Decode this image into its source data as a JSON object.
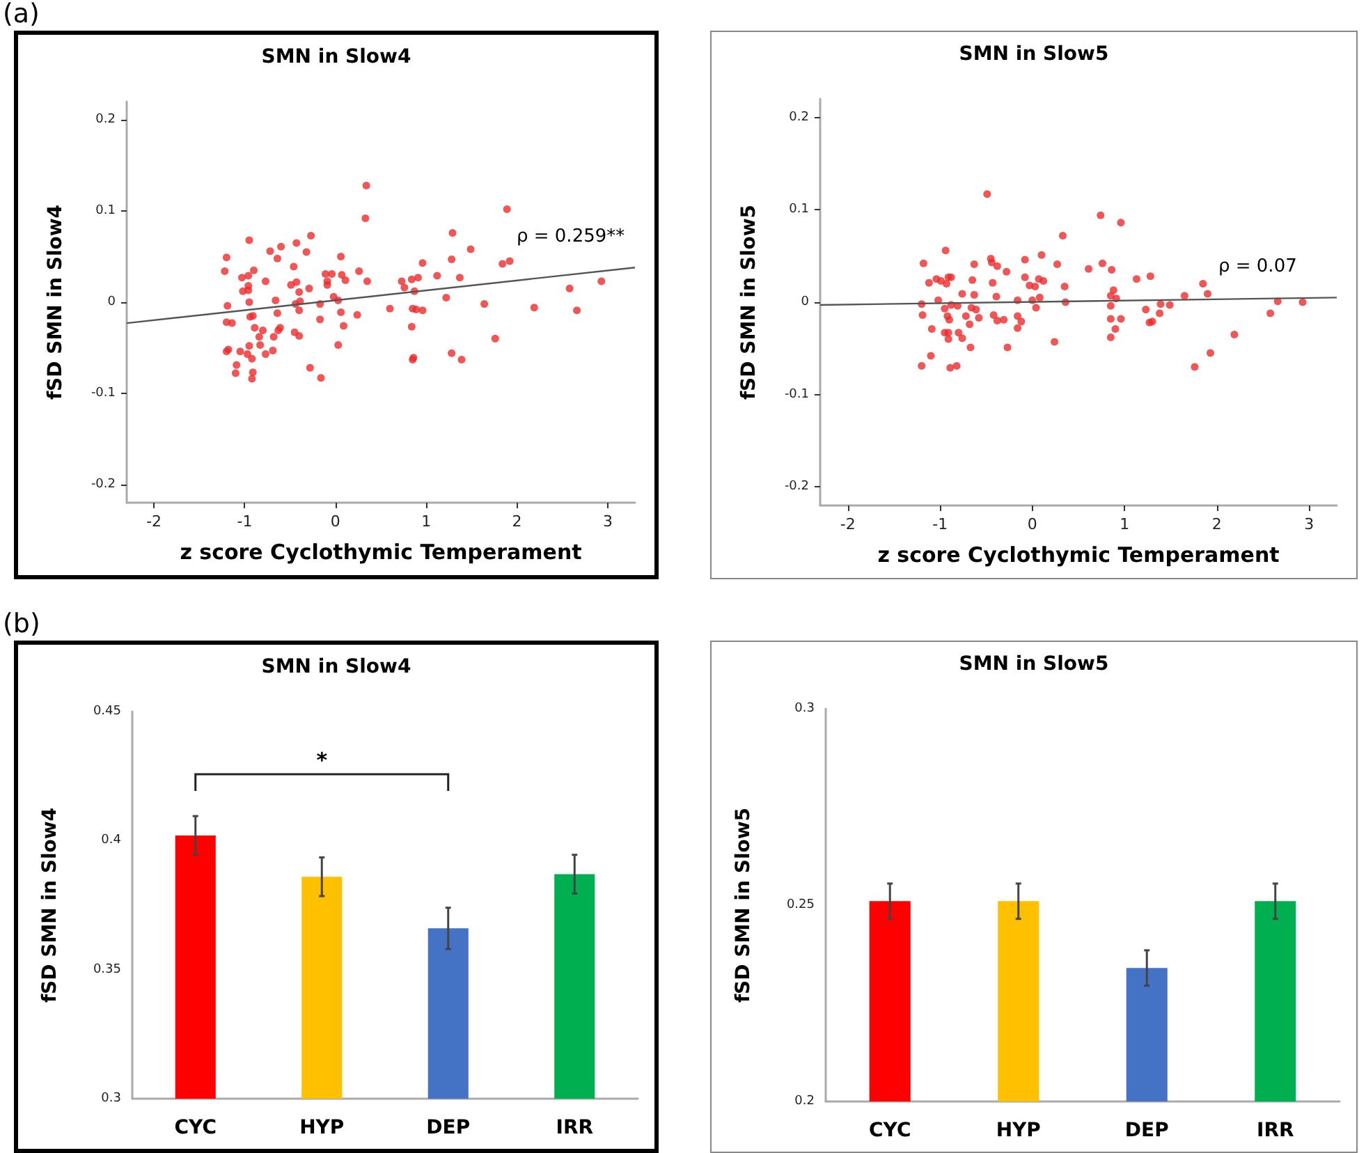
{
  "chart_data": [
    {
      "type": "scatter",
      "title": "SMN in Slow4",
      "xlabel": "z score Cyclothymic Temperament",
      "ylabel": "fSD SMN in Slow4",
      "annotations": [
        "(a)",
        "ρ = 0.259**"
      ],
      "xlim": [
        -2.3,
        3.3
      ],
      "ylim": [
        -0.22,
        0.22
      ],
      "xticks": [
        -2,
        -1,
        0,
        1,
        2,
        3
      ],
      "yticks": [
        -0.2,
        -0.1,
        0,
        0.1,
        0.2
      ],
      "series": [
        {
          "type": "scatter",
          "marker": "circle",
          "color": "#ee2a2a",
          "x": [
            0.34,
            0.33,
            1.89,
            1.29,
            1.49,
            1.28,
            1.84,
            1.92,
            0.96,
            1.12,
            1.37,
            0.73,
            0.76,
            0.84,
            0.91,
            0.87,
            1.22,
            0.6,
            0.85,
            0.89,
            0.96,
            0.84,
            1.64,
            1.76,
            1.28,
            1.39,
            0.86,
            0.85,
            2.19,
            2.58,
            2.66,
            2.93,
            -1.2,
            -1.22,
            -0.95,
            -0.9,
            -1.03,
            -0.96,
            -0.96,
            -1.02,
            -0.96,
            -1.19,
            -0.95,
            -1.2,
            -1.14,
            -0.94,
            -0.91,
            -0.89,
            -0.8,
            -0.84,
            -0.95,
            -0.83,
            -1.2,
            -1.18,
            -1.05,
            -0.97,
            -0.92,
            -1.09,
            -1.1,
            -0.91,
            -0.92,
            -0.77,
            -0.69,
            -0.68,
            -0.63,
            -0.61,
            -0.64,
            -0.66,
            -0.77,
            -0.72,
            -0.64,
            -0.6,
            -0.43,
            -0.32,
            -0.27,
            -0.46,
            -0.49,
            -0.43,
            -0.4,
            -0.39,
            -0.44,
            -0.4,
            -0.45,
            -0.4,
            -0.29,
            -0.17,
            -0.17,
            -0.28,
            -0.16,
            -0.11,
            -0.04,
            -0.09,
            -0.09,
            -0.02,
            0.03,
            0.06,
            0.07,
            0.11,
            0.06,
            0.09,
            0.03,
            0.26,
            0.35,
            0.24
          ],
          "values": [
            0.128,
            0.092,
            0.102,
            0.076,
            0.058,
            0.047,
            0.042,
            0.045,
            0.043,
            0.029,
            0.027,
            0.023,
            0.016,
            0.025,
            0.027,
            0.012,
            0.005,
            -0.007,
            -0.007,
            -0.008,
            -0.009,
            -0.027,
            -0.002,
            -0.04,
            -0.056,
            -0.063,
            -0.061,
            -0.063,
            -0.006,
            0.015,
            -0.009,
            0.023,
            0.049,
            0.034,
            0.068,
            0.035,
            0.027,
            0.029,
            0.018,
            0.012,
            0.013,
            -0.004,
            0.0,
            -0.022,
            -0.023,
            -0.016,
            -0.015,
            -0.028,
            -0.031,
            -0.038,
            -0.048,
            -0.047,
            -0.054,
            -0.052,
            -0.054,
            -0.057,
            -0.062,
            -0.069,
            -0.078,
            -0.077,
            -0.084,
            -0.057,
            -0.053,
            -0.038,
            -0.031,
            -0.028,
            -0.012,
            0.002,
            0.023,
            0.056,
            0.048,
            0.061,
            0.065,
            0.055,
            0.073,
            0.039,
            0.019,
            0.022,
            0.011,
            0.001,
            -0.002,
            -0.009,
            -0.033,
            -0.037,
            0.015,
            -0.002,
            -0.019,
            -0.072,
            -0.083,
            0.031,
            0.031,
            0.023,
            0.019,
            0.006,
            0.002,
            0.05,
            0.03,
            0.024,
            -0.011,
            -0.026,
            -0.047,
            0.034,
            0.023,
            -0.014
          ]
        },
        {
          "type": "line",
          "color": "#555555",
          "x": [
            -2.3,
            3.3
          ],
          "values": [
            -0.023,
            0.038
          ],
          "marker": "none"
        }
      ]
    },
    {
      "type": "scatter",
      "title": "SMN in Slow5",
      "xlabel": "z score Cyclothymic Temperament",
      "ylabel": "fSD SMN in Slow5",
      "annotations": [
        "ρ = 0.07"
      ],
      "xlim": [
        -2.3,
        3.3
      ],
      "ylim": [
        -0.22,
        0.22
      ],
      "xticks": [
        -2,
        -1,
        0,
        1,
        2,
        3
      ],
      "yticks": [
        -0.2,
        -0.1,
        0,
        0.1,
        0.2
      ],
      "series": [
        {
          "type": "scatter",
          "marker": "circle",
          "color": "#ee2a2a",
          "x": [
            -0.49,
            0.74,
            0.96,
            0.33,
            -0.94,
            -1.18,
            -0.63,
            -0.45,
            -0.44,
            -0.38,
            -0.28,
            -0.08,
            0.1,
            0.27,
            0.61,
            0.76,
            0.86,
            -1.12,
            -1.04,
            -0.99,
            -0.93,
            -0.91,
            -0.88,
            -0.65,
            -0.43,
            -0.08,
            -0.03,
            0.03,
            0.07,
            0.12,
            0.35,
            1.13,
            1.28,
            1.85,
            1.9,
            1.65,
            0.88,
            0.85,
            0.91,
            0.36,
            0.08,
            0.0,
            -0.16,
            -0.39,
            -0.63,
            -0.76,
            -1.02,
            -1.2,
            -1.19,
            -0.95,
            -0.88,
            -0.81,
            -0.66,
            -0.61,
            -0.72,
            -0.58,
            -0.42,
            -0.38,
            -0.31,
            -0.16,
            -0.12,
            -0.16,
            0.04,
            0.85,
            0.85,
            0.96,
            0.9,
            0.85,
            1.23,
            1.27,
            1.3,
            1.39,
            1.38,
            1.49,
            -1.09,
            -0.95,
            -0.91,
            -0.91,
            -0.8,
            -0.76,
            -0.68,
            -0.92,
            -0.9,
            0.24,
            -0.27,
            -0.67,
            -1.1,
            -1.2,
            -0.89,
            -0.82,
            1.76,
            1.93,
            2.19,
            2.58,
            2.66,
            2.93
          ],
          "values": [
            0.117,
            0.094,
            0.086,
            0.072,
            0.056,
            0.042,
            0.041,
            0.047,
            0.043,
            0.039,
            0.033,
            0.046,
            0.051,
            0.041,
            0.036,
            0.042,
            0.035,
            0.021,
            0.025,
            0.023,
            0.02,
            0.027,
            0.027,
            0.024,
            0.021,
            0.027,
            0.018,
            0.017,
            0.025,
            0.023,
            0.017,
            0.025,
            0.028,
            0.02,
            0.009,
            0.007,
            0.013,
            0.007,
            0.004,
            0.0,
            0.005,
            0.002,
            0.002,
            0.006,
            0.008,
            0.009,
            0.002,
            -0.002,
            -0.014,
            -0.007,
            -0.003,
            -0.004,
            -0.006,
            -0.008,
            -0.015,
            -0.017,
            -0.014,
            -0.02,
            -0.019,
            -0.015,
            -0.021,
            -0.028,
            -0.006,
            -0.004,
            -0.018,
            -0.018,
            -0.029,
            -0.038,
            -0.008,
            -0.022,
            -0.021,
            -0.002,
            -0.012,
            -0.003,
            -0.029,
            -0.033,
            -0.033,
            -0.04,
            -0.033,
            -0.039,
            -0.024,
            -0.015,
            -0.019,
            -0.043,
            -0.049,
            -0.049,
            -0.058,
            -0.069,
            -0.071,
            -0.069,
            -0.07,
            -0.055,
            -0.035,
            -0.012,
            0.001,
            0.0
          ]
        },
        {
          "type": "line",
          "color": "#555555",
          "x": [
            -2.3,
            3.3
          ],
          "values": [
            -0.003,
            0.005
          ],
          "marker": "none"
        }
      ]
    },
    {
      "type": "bar",
      "title": "SMN in Slow4",
      "ylabel": "fSD SMN in Slow4",
      "annotations": [
        "(b)",
        "*"
      ],
      "categories": [
        "CYC",
        "HYP",
        "DEP",
        "IRR"
      ],
      "values": [
        0.402,
        0.386,
        0.366,
        0.387
      ],
      "colors": [
        "#ff0000",
        "#ffc000",
        "#4472c4",
        "#00b050"
      ],
      "errors": [
        0.0075,
        0.0075,
        0.008,
        0.0075
      ],
      "ylim": [
        0.3,
        0.45
      ],
      "yticks": [
        0.3,
        0.35,
        0.4,
        0.45
      ]
    },
    {
      "type": "bar",
      "title": "SMN in Slow5",
      "ylabel": "fSD SMN in Slow5",
      "categories": [
        "CYC",
        "HYP",
        "DEP",
        "IRR"
      ],
      "values": [
        0.251,
        0.251,
        0.234,
        0.251
      ],
      "colors": [
        "#ff0000",
        "#ffc000",
        "#4472c4",
        "#00b050"
      ],
      "errors": [
        0.0045,
        0.0045,
        0.0045,
        0.0045
      ],
      "ylim": [
        0.2,
        0.3
      ],
      "yticks": [
        0.2,
        0.25,
        0.3
      ]
    }
  ]
}
